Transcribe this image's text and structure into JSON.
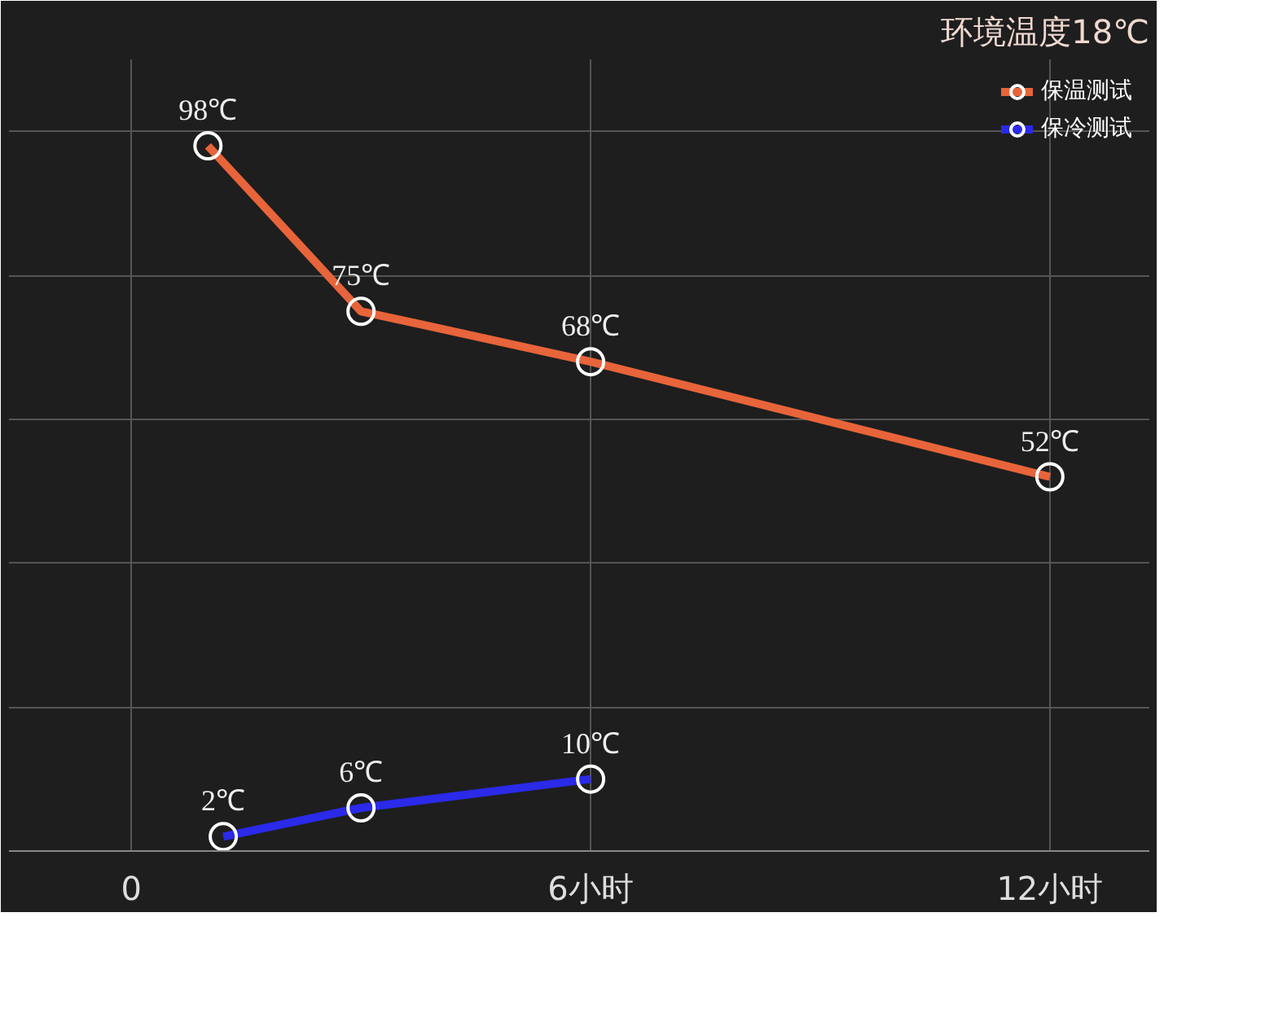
{
  "chart_data": {
    "type": "line",
    "title": "环境温度18℃",
    "xlim": [
      -1.6,
      13.3
    ],
    "xticks": [
      0,
      {
        "value": 6,
        "label": "6小时"
      },
      {
        "value": 12,
        "label": "12小时"
      }
    ],
    "ylim": [
      0,
      110
    ],
    "yticks": [
      {
        "value": 0,
        "label": null
      },
      {
        "value": 20,
        "label": null
      },
      {
        "value": 40,
        "label": null
      },
      {
        "value": 60,
        "label": null
      },
      {
        "value": 80,
        "label": null
      },
      {
        "value": 100,
        "label": null
      }
    ],
    "tick_labels": "x",
    "grid": true,
    "legend": "top right",
    "marker": "circle",
    "line_style": "solid",
    "series": [
      {
        "name": "保温测试",
        "color": "#e8643a",
        "x": [
          1,
          3,
          6,
          12
        ],
        "values": [
          98,
          75,
          68,
          52
        ],
        "value_labels": [
          "98℃",
          "75℃",
          "68℃",
          "52℃"
        ]
      },
      {
        "name": "保冷测试",
        "color": "#2a2ae8",
        "x": [
          1.2,
          3,
          6
        ],
        "values": [
          2,
          6,
          10
        ],
        "value_labels": [
          "2℃",
          "6℃",
          "10℃"
        ]
      }
    ]
  }
}
